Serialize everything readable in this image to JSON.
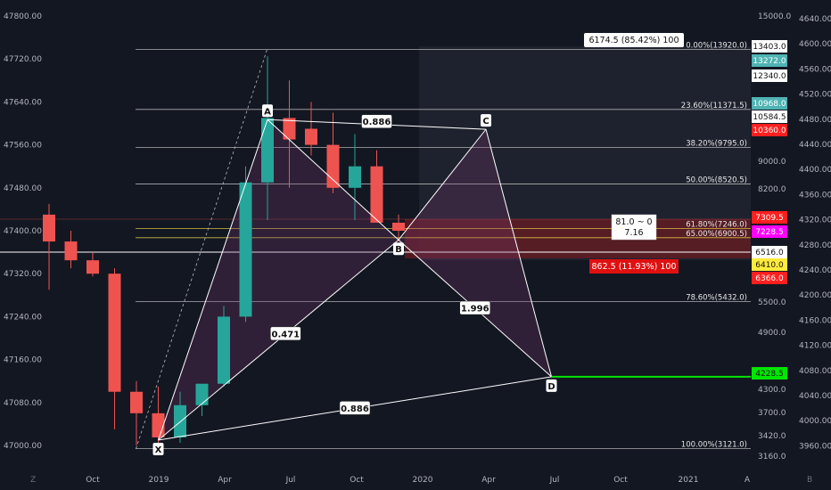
{
  "colors": {
    "background": "#131722",
    "up": "#26a69a",
    "down": "#ef5350",
    "pattern_line": "#ffffff",
    "fib_line": "#c8c8c8",
    "fib_618": "#f0d848",
    "fib_650": "#f0d848",
    "tag_red": "#ff1f1f",
    "tag_magenta": "#ff00ff",
    "tag_yellow": "#ffeb3b",
    "tag_green": "#00e600",
    "tag_teal": "#4fb3b3",
    "tag_white": "#ffffff"
  },
  "chart_data": {
    "type": "candlestick",
    "x_ticks": [
      "Oct",
      "2019",
      "Apr",
      "Jul",
      "Oct",
      "2020",
      "Apr",
      "Jul",
      "Oct",
      "2021",
      "A"
    ],
    "left_axis": {
      "ticks": [
        "47800.00",
        "47720.00",
        "47640.00",
        "47560.00",
        "47480.00",
        "47400.00",
        "47320.00",
        "47240.00",
        "47160.00",
        "47080.00",
        "47000.00"
      ]
    },
    "mid_axis": {
      "ticks": [
        "15000.0",
        "9000.0",
        "8200.0",
        "5500.0",
        "4900.0",
        "4300.0",
        "3700.0",
        "3420.0",
        "3160.0"
      ]
    },
    "right_axis": {
      "ticks": [
        "4640.00",
        "4600.00",
        "4560.00",
        "4520.00",
        "4480.00",
        "4440.00",
        "4400.00",
        "4360.00",
        "4320.00",
        "4280.00",
        "4240.00",
        "4200.00",
        "4160.00",
        "4120.00",
        "4080.00",
        "4040.00",
        "4000.00",
        "3960.00"
      ]
    },
    "candles": [
      {
        "date": "2018-08",
        "open": 47430,
        "high": 47450,
        "low": 47290,
        "close": 47380
      },
      {
        "date": "2018-09",
        "open": 47380,
        "high": 47400,
        "low": 47330,
        "close": 47345
      },
      {
        "date": "2018-10",
        "open": 47345,
        "high": 47360,
        "low": 47315,
        "close": 47320
      },
      {
        "date": "2018-11",
        "open": 47320,
        "high": 47330,
        "low": 47030,
        "close": 47100
      },
      {
        "date": "2018-12",
        "open": 47100,
        "high": 47120,
        "low": 47000,
        "close": 47060
      },
      {
        "date": "2019-01",
        "open": 47060,
        "high": 47110,
        "low": 47000,
        "close": 47015
      },
      {
        "date": "2019-02",
        "open": 47015,
        "high": 47100,
        "low": 47005,
        "close": 47075
      },
      {
        "date": "2019-03",
        "open": 47075,
        "high": 47110,
        "low": 47055,
        "close": 47115
      },
      {
        "date": "2019-04",
        "open": 47115,
        "high": 47260,
        "low": 47110,
        "close": 47240
      },
      {
        "date": "2019-05",
        "open": 47240,
        "high": 47520,
        "low": 47230,
        "close": 47490
      },
      {
        "date": "2019-06",
        "open": 47490,
        "high": 47725,
        "low": 47420,
        "close": 47610
      },
      {
        "date": "2019-07",
        "open": 47610,
        "high": 47680,
        "low": 47480,
        "close": 47570
      },
      {
        "date": "2019-08",
        "open": 47590,
        "high": 47640,
        "low": 47540,
        "close": 47560
      },
      {
        "date": "2019-09",
        "open": 47560,
        "high": 47620,
        "low": 47470,
        "close": 47480
      },
      {
        "date": "2019-10",
        "open": 47480,
        "high": 47580,
        "low": 47420,
        "close": 47520
      },
      {
        "date": "2019-11",
        "open": 47520,
        "high": 47550,
        "low": 47420,
        "close": 47415
      },
      {
        "date": "2019-12",
        "open": 47415,
        "high": 47430,
        "low": 47380,
        "close": 47400
      }
    ],
    "fib_levels": [
      {
        "label": "0.00%(13920.0)",
        "price": 47738
      },
      {
        "label": "23.60%(11371.5)",
        "price": 47626
      },
      {
        "label": "38.20%(9795.0)",
        "price": 47555
      },
      {
        "label": "50.00%(8520.5)",
        "price": 47487
      },
      {
        "label": "61.80%(7246.0)",
        "price": 47404
      },
      {
        "label": "65.00%(6900.5)",
        "price": 47387
      },
      {
        "label": "78.60%(5432.0)",
        "price": 47268
      },
      {
        "label": "100.00%(3121.0)",
        "price": 46994
      }
    ],
    "pattern_points": [
      {
        "label": "X",
        "date": "2019-01",
        "price": 47010
      },
      {
        "label": "A",
        "date": "2019-06",
        "price": 47607
      },
      {
        "label": "B",
        "date": "2019-12",
        "price": 47383
      },
      {
        "label": "C",
        "date": "2020-04",
        "price": 47589
      },
      {
        "label": "D",
        "date": "2020-07",
        "price": 47128
      }
    ],
    "ratios": [
      "0.886",
      "0.471",
      "1.996",
      "0.886"
    ],
    "price_tags": [
      {
        "text": "13403.0",
        "color": "white"
      },
      {
        "text": "13272.0",
        "color": "teal"
      },
      {
        "text": "12340.0",
        "color": "white"
      },
      {
        "text": "10968.0",
        "color": "teal"
      },
      {
        "text": "10584.5",
        "color": "white"
      },
      {
        "text": "10360.0",
        "color": "red"
      },
      {
        "text": "7309.5",
        "color": "red"
      },
      {
        "text": "7228.5",
        "color": "magenta"
      },
      {
        "text": "6516.0",
        "color": "white"
      },
      {
        "text": "6410.0",
        "color": "yellow"
      },
      {
        "text": "6366.0",
        "color": "red"
      },
      {
        "text": "4228.5",
        "color": "green"
      }
    ],
    "annotations": {
      "top_measure": "6174.5 (85.42%) 100",
      "range_top": "81.0 ~ 0",
      "range_bottom": "7.16",
      "red_measure": "862.5 (11.93%) 100"
    }
  },
  "footer": {
    "z_label": "Z",
    "b_label": "B"
  }
}
